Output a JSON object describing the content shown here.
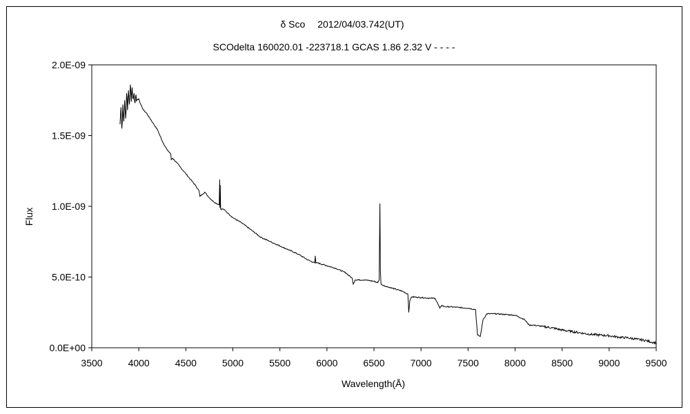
{
  "chart_data": {
    "type": "line",
    "title": "δ Sco　 2012/04/03.742(UT)",
    "subtitle": "SCOdelta 160020.01 -223718.1 GCAS 1.86 2.32 V - - - -",
    "xlabel": "Wavelength(Å)",
    "ylabel": "Flux",
    "xlim": [
      3500,
      9500
    ],
    "ylim": [
      0,
      2e-09
    ],
    "x_ticks": [
      3500,
      4000,
      4500,
      5000,
      5500,
      6000,
      6500,
      7000,
      7500,
      8000,
      8500,
      9000,
      9500
    ],
    "y_ticks": [
      0,
      5e-10,
      1e-09,
      1.5e-09,
      2e-09
    ],
    "y_tick_labels": [
      "0.0E+00",
      "5.0E-10",
      "1.0E-09",
      "1.5E-09",
      "2.0E-09"
    ],
    "grid": false,
    "line_color": "#000000",
    "series": [
      {
        "x": [
          3800,
          3810,
          3820,
          3830,
          3840,
          3850,
          3860,
          3870,
          3880,
          3890,
          3900,
          3910,
          3920,
          3930,
          3940,
          3950,
          3960,
          3970,
          3980,
          4000,
          4020,
          4050,
          4080,
          4100,
          4150,
          4200,
          4250,
          4300,
          4340,
          4345,
          4360,
          4400,
          4450,
          4500,
          4550,
          4600,
          4640,
          4650,
          4700,
          4750,
          4800,
          4855,
          4860,
          4862,
          4866,
          4870,
          4900,
          4950,
          5000,
          5100,
          5200,
          5300,
          5400,
          5500,
          5600,
          5700,
          5800,
          5870,
          5876,
          5882,
          5900,
          6000,
          6100,
          6200,
          6270,
          6280,
          6300,
          6400,
          6500,
          6540,
          6555,
          6563,
          6568,
          6575,
          6600,
          6700,
          6800,
          6860,
          6870,
          6880,
          6900,
          7000,
          7100,
          7150,
          7200,
          7220,
          7250,
          7300,
          7400,
          7500,
          7580,
          7600,
          7630,
          7660,
          7700,
          7800,
          7900,
          8000,
          8100,
          8150,
          8200,
          8300,
          8400,
          8500,
          8600,
          8700,
          8800,
          8900,
          9000,
          9100,
          9200,
          9300,
          9400,
          9450,
          9500
        ],
        "y": [
          1.58e-09,
          1.7e-09,
          1.55e-09,
          1.72e-09,
          1.6e-09,
          1.75e-09,
          1.62e-09,
          1.8e-09,
          1.68e-09,
          1.82e-09,
          1.72e-09,
          1.86e-09,
          1.74e-09,
          1.84e-09,
          1.76e-09,
          1.8e-09,
          1.73e-09,
          1.79e-09,
          1.75e-09,
          1.76e-09,
          1.72e-09,
          1.68e-09,
          1.66e-09,
          1.64e-09,
          1.59e-09,
          1.54e-09,
          1.46e-09,
          1.4e-09,
          1.37e-09,
          1.33e-09,
          1.34e-09,
          1.31e-09,
          1.27e-09,
          1.23e-09,
          1.19e-09,
          1.15e-09,
          1.11e-09,
          1.07e-09,
          1.1e-09,
          1.06e-09,
          1.03e-09,
          1.01e-09,
          1.19e-09,
          9.9e-10,
          1.15e-09,
          9.8e-10,
          9.8e-10,
          9.5e-10,
          9.2e-10,
          8.8e-10,
          8.3e-10,
          7.8e-10,
          7.5e-10,
          7.2e-10,
          6.9e-10,
          6.6e-10,
          6.2e-10,
          6e-10,
          6.5e-10,
          6e-10,
          6e-10,
          5.8e-10,
          5.6e-10,
          5.3e-10,
          4.9e-10,
          4.5e-10,
          4.8e-10,
          4.8e-10,
          4.7e-10,
          4.6e-10,
          4.8e-10,
          1.02e-09,
          5.5e-10,
          4.5e-10,
          4.4e-10,
          4.2e-10,
          4e-10,
          3.8e-10,
          2.5e-10,
          3.3e-10,
          3.6e-10,
          3.55e-10,
          3.5e-10,
          3.5e-10,
          2.8e-10,
          3e-10,
          2.9e-10,
          2.9e-10,
          2.85e-10,
          2.8e-10,
          2.7e-10,
          9e-11,
          8e-11,
          2e-10,
          2.4e-10,
          2.4e-10,
          2.35e-10,
          2.3e-10,
          2e-10,
          1.6e-10,
          1.6e-10,
          1.5e-10,
          1.4e-10,
          1.25e-10,
          1.15e-10,
          1.05e-10,
          9.5e-11,
          9e-11,
          8.5e-11,
          7.5e-11,
          7e-11,
          6e-11,
          5e-11,
          4e-11,
          3.5e-11
        ]
      }
    ]
  }
}
